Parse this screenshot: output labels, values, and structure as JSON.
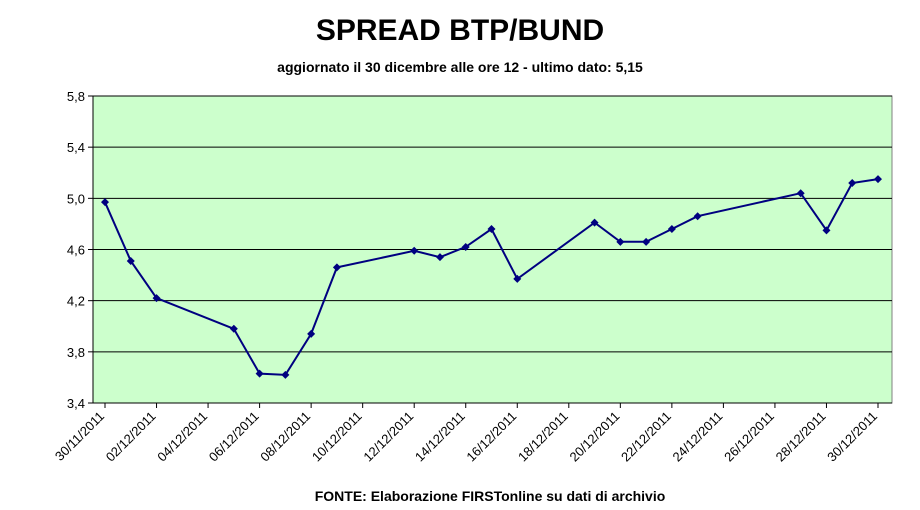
{
  "chart_data": {
    "type": "line",
    "title": "SPREAD BTP/BUND",
    "subtitle": "aggiornato il 30 dicembre alle ore 12 - ultimo dato: 5,15",
    "source": "FONTE: Elaborazione FIRSTonline su dati di archivio",
    "x": [
      "30/11/2011",
      "01/12/2011",
      "02/12/2011",
      "05/12/2011",
      "06/12/2011",
      "07/12/2011",
      "08/12/2011",
      "09/12/2011",
      "12/12/2011",
      "13/12/2011",
      "14/12/2011",
      "15/12/2011",
      "16/12/2011",
      "19/12/2011",
      "20/12/2011",
      "21/12/2011",
      "22/12/2011",
      "23/12/2011",
      "27/12/2011",
      "28/12/2011",
      "29/12/2011",
      "30/12/2011"
    ],
    "series": [
      {
        "name": "spread",
        "color": "#000080",
        "values": [
          4.97,
          4.51,
          4.22,
          3.98,
          3.63,
          3.62,
          3.94,
          4.46,
          4.59,
          4.54,
          4.62,
          4.76,
          4.37,
          4.81,
          4.66,
          4.66,
          4.76,
          4.86,
          5.04,
          4.75,
          5.12,
          5.15
        ]
      }
    ],
    "xlim": [
      "30/11/2011",
      "30/12/2011"
    ],
    "xticks": [
      "30/11/2011",
      "02/12/2011",
      "04/12/2011",
      "06/12/2011",
      "08/12/2011",
      "10/12/2011",
      "12/12/2011",
      "14/12/2011",
      "16/12/2011",
      "18/12/2011",
      "20/12/2011",
      "22/12/2011",
      "24/12/2011",
      "26/12/2011",
      "28/12/2011",
      "30/12/2011"
    ],
    "ylim": [
      3.4,
      5.8
    ],
    "yticks": [
      {
        "value": 3.4,
        "label": "3,4"
      },
      {
        "value": 3.8,
        "label": "3,8"
      },
      {
        "value": 4.2,
        "label": "4,2"
      },
      {
        "value": 4.6,
        "label": "4,6"
      },
      {
        "value": 5.0,
        "label": "5,0"
      },
      {
        "value": 5.4,
        "label": "5,4"
      },
      {
        "value": 5.8,
        "label": "5,8"
      }
    ],
    "grid": true,
    "background": "#ccffcc"
  }
}
